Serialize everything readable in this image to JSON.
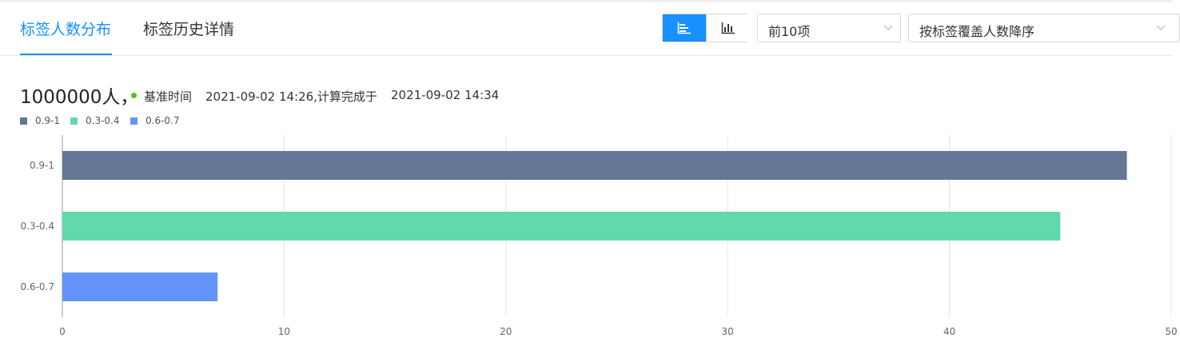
{
  "tabs": [
    {
      "label": "标签人数分布",
      "active": true
    },
    {
      "label": "标签历史详情",
      "active": false
    }
  ],
  "toolbar": {
    "view_toggle": [
      {
        "icon": "horizontal-bar-chart-icon",
        "active": true
      },
      {
        "icon": "vertical-bar-chart-icon",
        "active": false
      }
    ],
    "top_n_select": {
      "value": "前10项",
      "icon": "chevron-down-icon"
    },
    "sort_select": {
      "value": "按标签覆盖人数降序",
      "icon": "chevron-down-icon"
    },
    "accent_color": "#1890ff"
  },
  "summary": {
    "count": "1000000人，",
    "status_color": "#52c41a",
    "base_time_label": "基准时间",
    "base_time": "2021-09-02 14:26,计算完成于",
    "computed_time": "2021-09-02 14:34"
  },
  "chart_data": {
    "type": "bar",
    "orientation": "horizontal",
    "categories": [
      "0.9-1",
      "0.3-0.4",
      "0.6-0.7"
    ],
    "values": [
      48,
      45,
      7
    ],
    "colors": [
      "#647797",
      "#62d9ab",
      "#6394f9"
    ],
    "legend": [
      "0.9-1",
      "0.3-0.4",
      "0.6-0.7"
    ],
    "legend_position": "top-left",
    "xlim": [
      0,
      50
    ],
    "xticks": [
      0,
      10,
      20,
      30,
      40,
      50
    ],
    "grid": true,
    "title": "",
    "xlabel": "",
    "ylabel": ""
  }
}
